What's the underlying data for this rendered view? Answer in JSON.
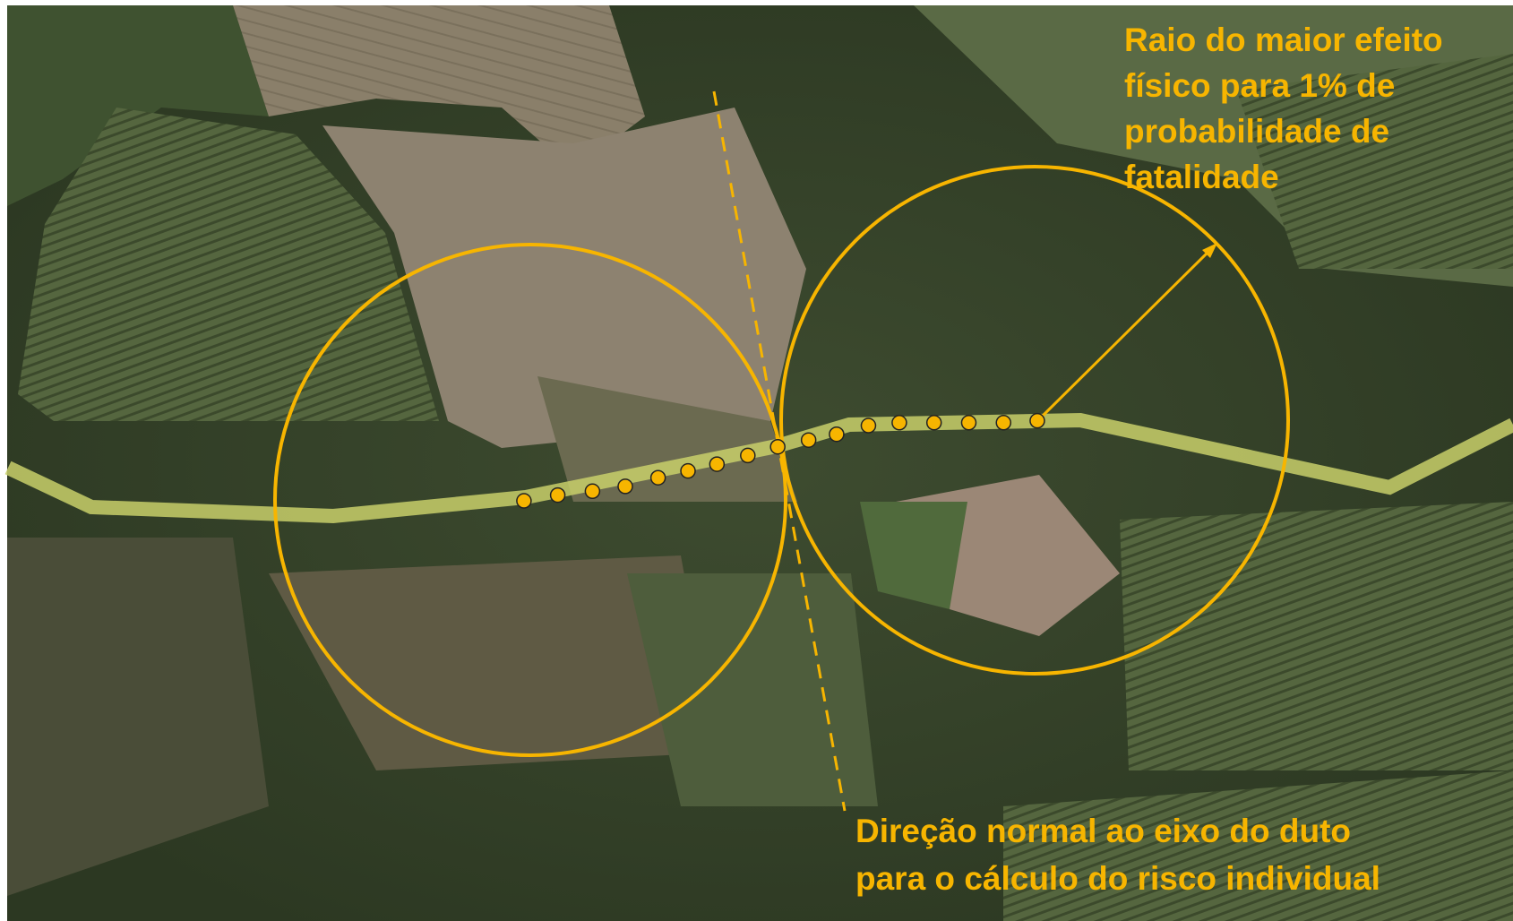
{
  "annotations": {
    "radius_label": [
      "Raio do maior efeito",
      "físico para 1% de",
      "probabilidade de",
      "fatalidade"
    ],
    "direction_label": [
      "Direção normal ao eixo do duto",
      "para o cálculo do risco individual"
    ]
  }
}
